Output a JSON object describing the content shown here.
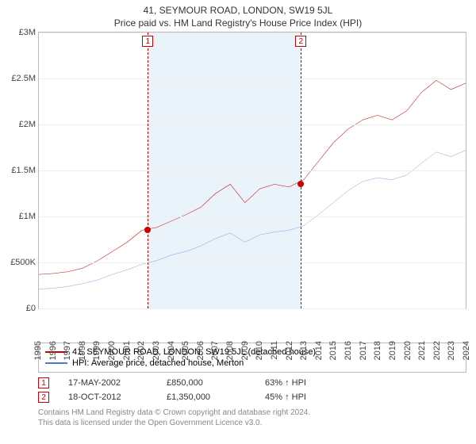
{
  "title": "41, SEYMOUR ROAD, LONDON, SW19 5JL",
  "subtitle": "Price paid vs. HM Land Registry's House Price Index (HPI)",
  "chart": {
    "type": "line",
    "background_color": "#ffffff",
    "grid_color": "#eeeeee",
    "border_color": "#bbbbbb",
    "x_years": [
      1995,
      1996,
      1997,
      1998,
      1999,
      2000,
      2001,
      2002,
      2003,
      2004,
      2005,
      2006,
      2007,
      2008,
      2009,
      2010,
      2011,
      2012,
      2013,
      2014,
      2015,
      2016,
      2017,
      2018,
      2019,
      2020,
      2021,
      2022,
      2023,
      2024
    ],
    "y_min": 0,
    "y_max": 3000000,
    "y_ticks": [
      0,
      500000,
      1000000,
      1500000,
      2000000,
      2500000,
      3000000
    ],
    "y_tick_labels": [
      "£0",
      "£500K",
      "£1M",
      "£1.5M",
      "£2M",
      "£2.5M",
      "£3M"
    ],
    "shaded_band": {
      "start_year": 2002.4,
      "end_year": 2012.8,
      "color": "#eaf2fa"
    },
    "series": [
      {
        "name": "41, SEYMOUR ROAD, LONDON, SW19 5JL (detached house)",
        "color": "#cc0000",
        "line_width": 1.8,
        "points": [
          [
            1995,
            370000
          ],
          [
            1996,
            380000
          ],
          [
            1997,
            400000
          ],
          [
            1998,
            440000
          ],
          [
            1999,
            520000
          ],
          [
            2000,
            620000
          ],
          [
            2001,
            720000
          ],
          [
            2002,
            850000
          ],
          [
            2003,
            880000
          ],
          [
            2004,
            950000
          ],
          [
            2005,
            1020000
          ],
          [
            2006,
            1100000
          ],
          [
            2007,
            1250000
          ],
          [
            2008,
            1350000
          ],
          [
            2009,
            1150000
          ],
          [
            2010,
            1300000
          ],
          [
            2011,
            1350000
          ],
          [
            2012,
            1320000
          ],
          [
            2013,
            1400000
          ],
          [
            2014,
            1600000
          ],
          [
            2015,
            1800000
          ],
          [
            2016,
            1950000
          ],
          [
            2017,
            2050000
          ],
          [
            2018,
            2100000
          ],
          [
            2019,
            2050000
          ],
          [
            2020,
            2150000
          ],
          [
            2021,
            2350000
          ],
          [
            2022,
            2480000
          ],
          [
            2023,
            2380000
          ],
          [
            2024,
            2450000
          ]
        ]
      },
      {
        "name": "HPI: Average price, detached house, Merton",
        "color": "#4a7bc8",
        "line_width": 1.2,
        "points": [
          [
            1995,
            210000
          ],
          [
            1996,
            220000
          ],
          [
            1997,
            240000
          ],
          [
            1998,
            270000
          ],
          [
            1999,
            310000
          ],
          [
            2000,
            370000
          ],
          [
            2001,
            420000
          ],
          [
            2002,
            480000
          ],
          [
            2003,
            520000
          ],
          [
            2004,
            580000
          ],
          [
            2005,
            620000
          ],
          [
            2006,
            680000
          ],
          [
            2007,
            760000
          ],
          [
            2008,
            820000
          ],
          [
            2009,
            720000
          ],
          [
            2010,
            800000
          ],
          [
            2011,
            830000
          ],
          [
            2012,
            850000
          ],
          [
            2013,
            900000
          ],
          [
            2014,
            1020000
          ],
          [
            2015,
            1150000
          ],
          [
            2016,
            1280000
          ],
          [
            2017,
            1380000
          ],
          [
            2018,
            1420000
          ],
          [
            2019,
            1400000
          ],
          [
            2020,
            1450000
          ],
          [
            2021,
            1580000
          ],
          [
            2022,
            1700000
          ],
          [
            2023,
            1650000
          ],
          [
            2024,
            1720000
          ]
        ]
      }
    ],
    "markers": [
      {
        "idx": "1",
        "year": 2002.4,
        "value": 850000,
        "color": "#cc0000"
      },
      {
        "idx": "2",
        "year": 2012.8,
        "value": 1350000,
        "color": "#cc0000"
      }
    ],
    "marker_dot_color": "#cc0000"
  },
  "legend": {
    "items": [
      {
        "label": "41, SEYMOUR ROAD, LONDON, SW19 5JL (detached house)",
        "color": "#cc0000"
      },
      {
        "label": "HPI: Average price, detached house, Merton",
        "color": "#4a7bc8"
      }
    ]
  },
  "sales": [
    {
      "idx": "1",
      "date": "17-MAY-2002",
      "price": "£850,000",
      "delta": "63% ↑ HPI",
      "color": "#cc0000"
    },
    {
      "idx": "2",
      "date": "18-OCT-2012",
      "price": "£1,350,000",
      "delta": "45% ↑ HPI",
      "color": "#cc0000"
    }
  ],
  "footer_line1": "Contains HM Land Registry data © Crown copyright and database right 2024.",
  "footer_line2": "This data is licensed under the Open Government Licence v3.0."
}
